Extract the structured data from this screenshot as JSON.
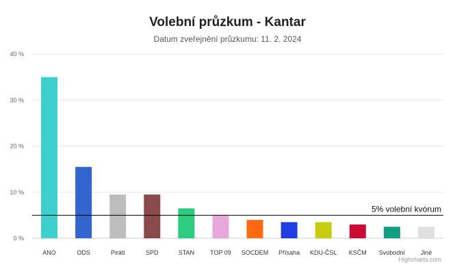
{
  "chart_data": {
    "type": "bar",
    "title": "Volební průzkum - Kantar",
    "subtitle": "Datum zveřejnění průzkumu: 11. 2. 2024",
    "categories": [
      "ANO",
      "ODS",
      "Piráti",
      "SPD",
      "STAN",
      "TOP 09",
      "SOCDEM",
      "Přísaha",
      "KDU-ČSL",
      "KSČM",
      "Svobodní",
      "Jiné"
    ],
    "values": [
      35.0,
      15.5,
      9.5,
      9.5,
      6.5,
      5.0,
      4.0,
      3.5,
      3.5,
      3.0,
      2.5,
      2.5
    ],
    "colors": [
      "#3ecfcf",
      "#3366cc",
      "#bdbdbd",
      "#8b4a4a",
      "#2ecc80",
      "#e9a8dc",
      "#ff6a13",
      "#1f3de0",
      "#c8cc10",
      "#cc0a33",
      "#119e85",
      "#e0e0e0"
    ],
    "ylim": [
      0,
      40
    ],
    "yticks": [
      "0 %",
      "10 %",
      "20 %",
      "30 %",
      "40 %"
    ],
    "ytick_values": [
      0,
      10,
      20,
      30,
      40
    ],
    "threshold": {
      "value": 5,
      "label": "5% volební kvórum"
    },
    "grid": true,
    "legend": "none"
  },
  "credits": "Highcharts.com"
}
